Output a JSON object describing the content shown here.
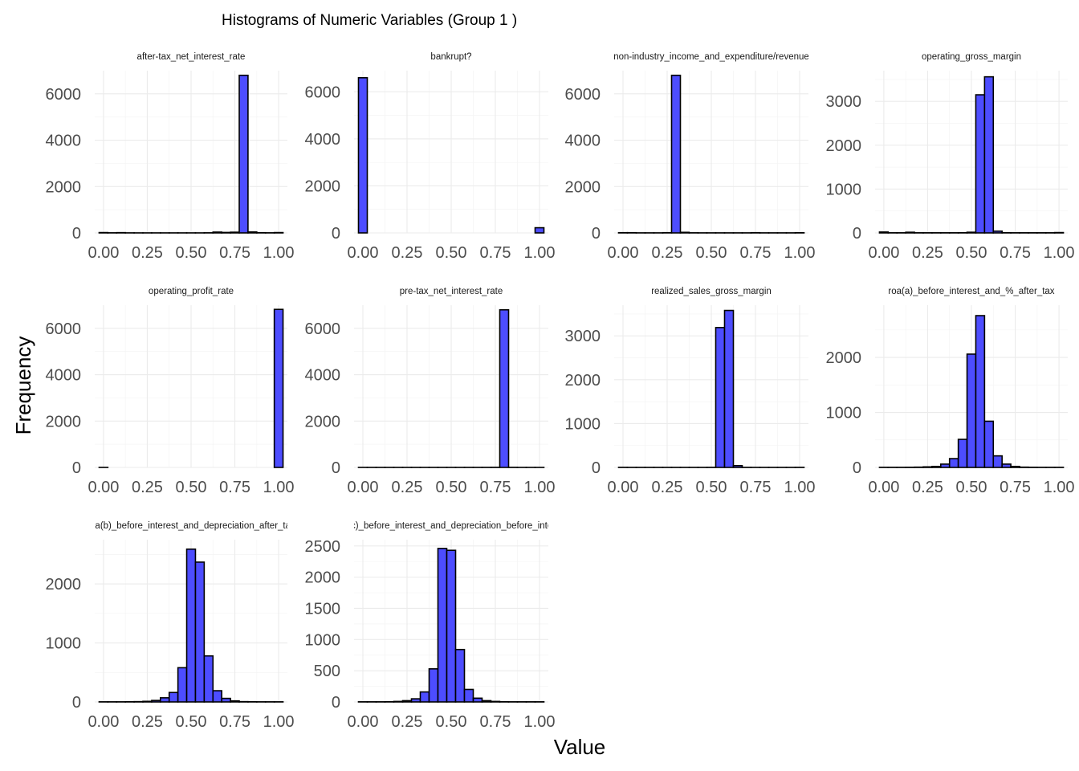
{
  "chart_data": {
    "type": "bar",
    "title": "Histograms of Numeric Variables (Group 1 )",
    "xlabel": "Value",
    "ylabel": "Frequency",
    "bar_fill": "#4d4dff",
    "bar_outline": "#000000",
    "bin_width": 0.05,
    "grid": true,
    "facets": [
      {
        "name": "after-tax_net_interest_rate",
        "xlim": [
          -0.05,
          1.05
        ],
        "ylim": [
          0,
          7000
        ],
        "yticks": [
          0,
          2000,
          4000,
          6000
        ],
        "xticks": [
          0,
          0.25,
          0.5,
          0.75,
          1.0
        ],
        "xtick_labels": [
          "0.00",
          "0.25",
          "0.50",
          "0.75",
          "1.00"
        ],
        "bin_centers": [
          0,
          0.05,
          0.1,
          0.15,
          0.2,
          0.25,
          0.3,
          0.35,
          0.4,
          0.45,
          0.5,
          0.55,
          0.6,
          0.65,
          0.7,
          0.75,
          0.8,
          0.85,
          0.9,
          0.95,
          1.0
        ],
        "counts": [
          15,
          5,
          12,
          3,
          2,
          2,
          2,
          2,
          2,
          2,
          2,
          2,
          5,
          35,
          20,
          30,
          6800,
          40,
          10,
          5,
          15
        ]
      },
      {
        "name": "bankrupt?",
        "xlim": [
          -0.05,
          1.05
        ],
        "ylim": [
          0,
          6900
        ],
        "yticks": [
          0,
          2000,
          4000,
          6000
        ],
        "xticks": [
          0,
          0.25,
          0.5,
          0.75,
          1.0
        ],
        "xtick_labels": [
          "0.00",
          "0.25",
          "0.50",
          "0.75",
          "1.00"
        ],
        "bin_centers": [
          0,
          0.05,
          0.1,
          0.15,
          0.2,
          0.25,
          0.3,
          0.35,
          0.4,
          0.45,
          0.5,
          0.55,
          0.6,
          0.65,
          0.7,
          0.75,
          0.8,
          0.85,
          0.9,
          0.95,
          1.0
        ],
        "counts": [
          6599,
          0,
          0,
          0,
          0,
          0,
          0,
          0,
          0,
          0,
          0,
          0,
          0,
          0,
          0,
          0,
          0,
          0,
          0,
          0,
          220
        ]
      },
      {
        "name": "non-industry_income_and_expenditure/revenue",
        "xlim": [
          -0.05,
          1.05
        ],
        "ylim": [
          0,
          7000
        ],
        "yticks": [
          0,
          2000,
          4000,
          6000
        ],
        "xticks": [
          0,
          0.25,
          0.5,
          0.75,
          1.0
        ],
        "xtick_labels": [
          "0.00",
          "0.25",
          "0.50",
          "0.75",
          "1.00"
        ],
        "bin_centers": [
          0,
          0.05,
          0.1,
          0.15,
          0.2,
          0.25,
          0.3,
          0.35,
          0.4,
          0.45,
          0.5,
          0.55,
          0.6,
          0.65,
          0.7,
          0.75,
          0.8,
          0.85,
          0.9,
          0.95,
          1.0
        ],
        "counts": [
          10,
          10,
          3,
          3,
          3,
          10,
          6800,
          25,
          5,
          3,
          3,
          3,
          3,
          3,
          3,
          10,
          3,
          3,
          3,
          3,
          8
        ]
      },
      {
        "name": "operating_gross_margin",
        "xlim": [
          -0.05,
          1.05
        ],
        "ylim": [
          0,
          3700
        ],
        "yticks": [
          0,
          1000,
          2000,
          3000
        ],
        "xticks": [
          0,
          0.25,
          0.5,
          0.75,
          1.0
        ],
        "xtick_labels": [
          "0.00",
          "0.25",
          "0.50",
          "0.75",
          "1.00"
        ],
        "bin_centers": [
          0,
          0.05,
          0.1,
          0.15,
          0.2,
          0.25,
          0.3,
          0.35,
          0.4,
          0.45,
          0.5,
          0.55,
          0.6,
          0.65,
          0.7,
          0.75,
          0.8,
          0.85,
          0.9,
          0.95,
          1.0
        ],
        "counts": [
          20,
          3,
          3,
          15,
          3,
          3,
          3,
          3,
          3,
          5,
          15,
          3150,
          3560,
          40,
          5,
          3,
          3,
          3,
          3,
          3,
          8
        ]
      },
      {
        "name": "operating_profit_rate",
        "xlim": [
          -0.05,
          1.05
        ],
        "ylim": [
          0,
          7000
        ],
        "yticks": [
          0,
          2000,
          4000,
          6000
        ],
        "xticks": [
          0,
          0.25,
          0.5,
          0.75,
          1.0
        ],
        "xtick_labels": [
          "0.00",
          "0.25",
          "0.50",
          "0.75",
          "1.00"
        ],
        "bin_centers": [
          0,
          0.05,
          0.1,
          0.15,
          0.2,
          0.25,
          0.3,
          0.35,
          0.4,
          0.45,
          0.5,
          0.55,
          0.6,
          0.65,
          0.7,
          0.75,
          0.8,
          0.85,
          0.9,
          0.95,
          1.0
        ],
        "counts": [
          1,
          0,
          0,
          0,
          0,
          0,
          0,
          0,
          0,
          0,
          0,
          0,
          0,
          0,
          0,
          0,
          0,
          0,
          0,
          0,
          6819
        ]
      },
      {
        "name": "pre-tax_net_interest_rate",
        "xlim": [
          -0.05,
          1.05
        ],
        "ylim": [
          0,
          7000
        ],
        "yticks": [
          0,
          2000,
          4000,
          6000
        ],
        "xticks": [
          0,
          0.25,
          0.5,
          0.75,
          1.0
        ],
        "xtick_labels": [
          "0.00",
          "0.25",
          "0.50",
          "0.75",
          "1.00"
        ],
        "bin_centers": [
          0,
          0.05,
          0.1,
          0.15,
          0.2,
          0.25,
          0.3,
          0.35,
          0.4,
          0.45,
          0.5,
          0.55,
          0.6,
          0.65,
          0.7,
          0.75,
          0.8,
          0.85,
          0.9,
          0.95,
          1.0
        ],
        "counts": [
          1,
          1,
          1,
          1,
          1,
          1,
          1,
          1,
          1,
          1,
          1,
          1,
          2,
          2,
          3,
          5,
          6800,
          4,
          1,
          1,
          1
        ]
      },
      {
        "name": "realized_sales_gross_margin",
        "xlim": [
          -0.05,
          1.05
        ],
        "ylim": [
          0,
          3700
        ],
        "yticks": [
          0,
          1000,
          2000,
          3000
        ],
        "xticks": [
          0,
          0.25,
          0.5,
          0.75,
          1.0
        ],
        "xtick_labels": [
          "0.00",
          "0.25",
          "0.50",
          "0.75",
          "1.00"
        ],
        "bin_centers": [
          0,
          0.05,
          0.1,
          0.15,
          0.2,
          0.25,
          0.3,
          0.35,
          0.4,
          0.45,
          0.5,
          0.55,
          0.6,
          0.65,
          0.7,
          0.75,
          0.8,
          0.85,
          0.9,
          0.95,
          1.0
        ],
        "counts": [
          2,
          1,
          1,
          1,
          1,
          1,
          1,
          1,
          1,
          1,
          2,
          3190,
          3580,
          40,
          2,
          1,
          1,
          1,
          1,
          1,
          2
        ]
      },
      {
        "name": "roa(a)_before_interest_and_%_after_tax",
        "xlim": [
          -0.05,
          1.05
        ],
        "ylim": [
          0,
          2950
        ],
        "yticks": [
          0,
          1000,
          2000
        ],
        "xticks": [
          0,
          0.25,
          0.5,
          0.75,
          1.0
        ],
        "xtick_labels": [
          "0.00",
          "0.25",
          "0.50",
          "0.75",
          "1.00"
        ],
        "bin_centers": [
          0,
          0.05,
          0.1,
          0.15,
          0.2,
          0.25,
          0.3,
          0.35,
          0.4,
          0.45,
          0.5,
          0.55,
          0.6,
          0.65,
          0.7,
          0.75,
          0.8,
          0.85,
          0.9,
          0.95,
          1.0
        ],
        "counts": [
          2,
          2,
          2,
          3,
          5,
          10,
          18,
          60,
          160,
          510,
          2060,
          2760,
          840,
          210,
          60,
          18,
          5,
          3,
          2,
          2,
          2
        ]
      },
      {
        "name": "roa(b)_before_interest_and_depreciation_after_tax",
        "xlim": [
          -0.05,
          1.05
        ],
        "ylim": [
          0,
          2750
        ],
        "yticks": [
          0,
          1000,
          2000
        ],
        "xticks": [
          0,
          0.25,
          0.5,
          0.75,
          1.0
        ],
        "xtick_labels": [
          "0.00",
          "0.25",
          "0.50",
          "0.75",
          "1.00"
        ],
        "bin_centers": [
          0,
          0.05,
          0.1,
          0.15,
          0.2,
          0.25,
          0.3,
          0.35,
          0.4,
          0.45,
          0.5,
          0.55,
          0.6,
          0.65,
          0.7,
          0.75,
          0.8,
          0.85,
          0.9,
          0.95,
          1.0
        ],
        "counts": [
          2,
          2,
          2,
          3,
          5,
          10,
          25,
          70,
          160,
          580,
          2590,
          2370,
          780,
          190,
          60,
          18,
          5,
          3,
          2,
          2,
          2
        ]
      },
      {
        "name": "roa(c)_before_interest_and_depreciation_before_interest",
        "xlim": [
          -0.05,
          1.05
        ],
        "ylim": [
          0,
          2600
        ],
        "yticks": [
          0,
          500,
          1000,
          1500,
          2000,
          2500
        ],
        "xticks": [
          0,
          0.25,
          0.5,
          0.75,
          1.0
        ],
        "xtick_labels": [
          "0.00",
          "0.25",
          "0.50",
          "0.75",
          "1.00"
        ],
        "bin_centers": [
          0,
          0.05,
          0.1,
          0.15,
          0.2,
          0.25,
          0.3,
          0.35,
          0.4,
          0.45,
          0.5,
          0.55,
          0.6,
          0.65,
          0.7,
          0.75,
          0.8,
          0.85,
          0.9,
          0.95,
          1.0
        ],
        "counts": [
          2,
          2,
          2,
          3,
          8,
          20,
          50,
          160,
          530,
          2460,
          2430,
          840,
          200,
          60,
          20,
          8,
          3,
          2,
          2,
          2,
          2
        ]
      }
    ]
  }
}
